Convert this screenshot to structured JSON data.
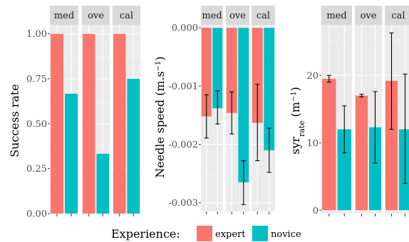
{
  "legend": {
    "title": "Experience:",
    "items": [
      {
        "label": "expert",
        "color": "#F8766D"
      },
      {
        "label": "novice",
        "color": "#00BFC4"
      }
    ]
  },
  "chart_data": [
    {
      "type": "bar",
      "panel": "success",
      "facets": [
        "med",
        "ove",
        "cal"
      ],
      "ylabel": "Success rate",
      "ylim": [
        0,
        1.05
      ],
      "yticks": [
        0,
        0.25,
        0.5,
        0.75,
        1
      ],
      "ytick_labels": [
        "0.00",
        "0.25",
        "0.50",
        "0.75",
        "1.00"
      ],
      "series": [
        {
          "name": "expert",
          "values": [
            1.0,
            1.0,
            1.0
          ]
        },
        {
          "name": "novice",
          "values": [
            0.667,
            0.333,
            0.75
          ]
        }
      ]
    },
    {
      "type": "bar",
      "panel": "speed",
      "facets": [
        "med",
        "ove",
        "cal"
      ],
      "ylabel": "Needle speed (m.s⁻¹)",
      "ylim": [
        -0.00315,
        5e-05
      ],
      "yticks": [
        0,
        -0.001,
        -0.002,
        -0.003
      ],
      "ytick_labels": [
        "0.000",
        "-0.001",
        "-0.002",
        "-0.003"
      ],
      "series": [
        {
          "name": "expert",
          "values": [
            -0.00152,
            -0.00146,
            -0.00163
          ],
          "err_low": [
            -0.00189,
            -0.00182,
            -0.00228
          ],
          "err_high": [
            -0.00115,
            -0.0011,
            -0.00097
          ]
        },
        {
          "name": "novice",
          "values": [
            -0.00138,
            -0.00265,
            -0.0021
          ],
          "err_low": [
            -0.00165,
            -0.00303,
            -0.00248
          ],
          "err_high": [
            -0.00108,
            -0.00228,
            -0.00172
          ]
        }
      ]
    },
    {
      "type": "bar",
      "panel": "syr",
      "facets": [
        "med",
        "ove",
        "cal"
      ],
      "ylabel": "syr_rate (m⁻¹)",
      "ylim": [
        -0.5,
        27.5
      ],
      "yticks": [
        0,
        10,
        20
      ],
      "ytick_labels": [
        "0",
        "10",
        "20"
      ],
      "series": [
        {
          "name": "expert",
          "values": [
            19.5,
            17.0,
            19.2
          ],
          "err_low": [
            19.0,
            16.8,
            12.0
          ],
          "err_high": [
            20.0,
            17.2,
            26.3
          ]
        },
        {
          "name": "novice",
          "values": [
            12.0,
            12.3,
            12.0
          ],
          "err_low": [
            8.5,
            7.0,
            4.0
          ],
          "err_high": [
            15.5,
            17.6,
            20.2
          ]
        }
      ]
    }
  ]
}
